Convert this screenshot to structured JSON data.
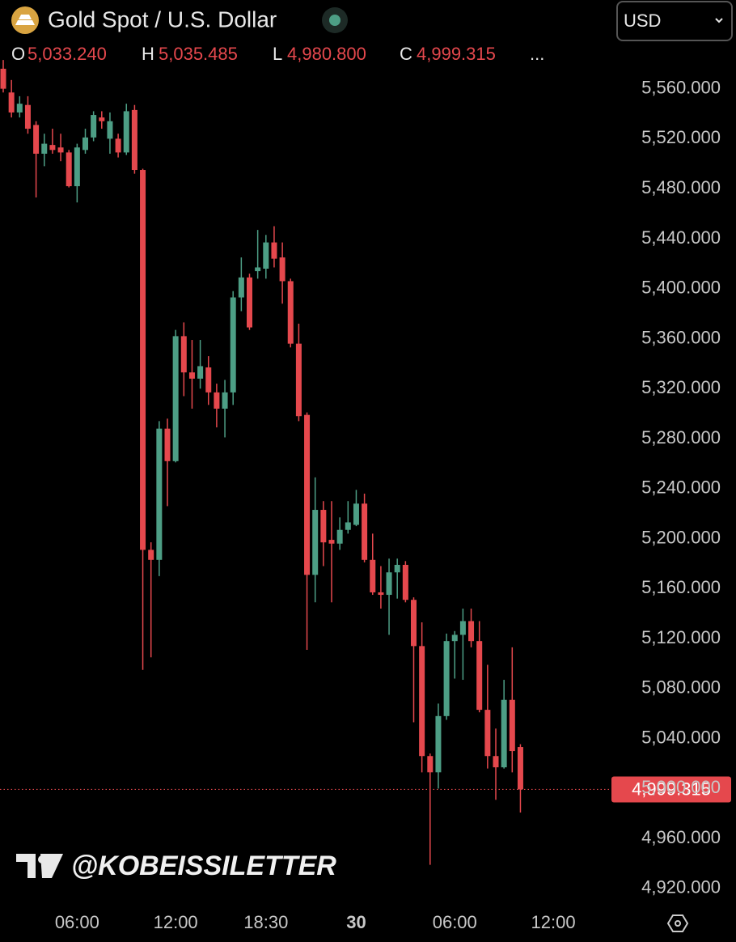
{
  "chart_data": {
    "type": "candlestick",
    "title": "Gold Spot / U.S. Dollar",
    "currency": "USD",
    "watermark": "@KOBEISSILETTER",
    "header": {
      "fields": [
        {
          "key": "O",
          "label": "5,033.240"
        },
        {
          "key": "H",
          "label": "5,035.485"
        },
        {
          "key": "L",
          "label": "4,980.800"
        },
        {
          "key": "C",
          "label": "4,999.315"
        }
      ],
      "more": "..."
    },
    "last_price_label": "4,999.315",
    "up_color": "#4d9e85",
    "down_color": "#e5484d",
    "categories": [
      null,
      null,
      null,
      null,
      null,
      null,
      null,
      null,
      null,
      "06:00",
      null,
      null,
      null,
      null,
      null,
      null,
      null,
      null,
      null,
      null,
      null,
      "12:00",
      null,
      null,
      null,
      null,
      null,
      null,
      null,
      null,
      null,
      null,
      "18:30",
      null,
      null,
      null,
      null,
      null,
      null,
      null,
      null,
      null,
      null,
      "30",
      null,
      null,
      null,
      null,
      null,
      null,
      null,
      null,
      null,
      null,
      null,
      "06:00",
      null,
      null,
      null,
      null,
      null,
      null,
      null,
      null,
      null,
      null,
      null,
      "12:00"
    ],
    "open": [
      5576,
      5557,
      5541,
      5547,
      5531,
      5508,
      5515,
      5513,
      5509,
      5482,
      5511,
      5521,
      5537,
      5520,
      5520,
      5509,
      5543,
      5495,
      5191,
      5183,
      5288,
      5262,
      5362,
      5333,
      5328,
      5337,
      5317,
      5304,
      5317,
      5393,
      5409,
      5414,
      5416,
      5437,
      5425,
      5406,
      5356,
      5299,
      5171,
      5223,
      5199,
      5196,
      5207,
      5211,
      5228,
      5183,
      5157,
      5155,
      5173,
      5179,
      5151,
      5114,
      5026,
      5013,
      5058,
      5118,
      5123,
      5134,
      5118,
      5063,
      5026,
      5017,
      5071,
      5033.24,
      null,
      null,
      null,
      null
    ],
    "high": [
      5583,
      5567,
      5554,
      5554,
      5534,
      5524,
      5528,
      5524,
      5511,
      5516,
      5528,
      5542,
      5542,
      5541,
      5524,
      5548,
      5547,
      5496,
      5197,
      5294,
      5296,
      5367,
      5373,
      5359,
      5359,
      5346,
      5324,
      5327,
      5398,
      5425,
      5412,
      5447,
      5443,
      5450,
      5437,
      5408,
      5372,
      5301,
      5249,
      5230,
      5230,
      5217,
      5230,
      5239,
      5236,
      5204,
      5178,
      5184,
      5184,
      5182,
      5153,
      5133,
      5028,
      5068,
      5124,
      5126,
      5144,
      5144,
      5134,
      5099,
      5048,
      5087,
      5113,
      5035.485,
      null,
      null,
      null,
      null
    ],
    "low": [
      5557,
      5537,
      5537,
      5524,
      5473,
      5498,
      5508,
      5502,
      5481,
      5469,
      5508,
      5518,
      5528,
      5508,
      5505,
      5507,
      5492,
      5095,
      5105,
      5170,
      5226,
      5261,
      5314,
      5304,
      5320,
      5307,
      5289,
      5281,
      5307,
      5382,
      5367,
      5408,
      5408,
      5417,
      5388,
      5353,
      5294,
      5111,
      5149,
      5178,
      5149,
      5191,
      5204,
      5210,
      5181,
      5155,
      5144,
      5123,
      5152,
      5149,
      5053,
      5013,
      4939,
      5000,
      5055,
      5088,
      5087,
      5113,
      5061,
      5016,
      4991,
      5016,
      5013,
      4980.8,
      null,
      null,
      null,
      null
    ],
    "close": [
      5560,
      5541,
      5548,
      5528,
      5508,
      5516,
      5511,
      5509,
      5482,
      5513,
      5521,
      5539,
      5534,
      5534,
      5509,
      5542,
      5495,
      5191,
      5183,
      5288,
      5262,
      5362,
      5333,
      5328,
      5338,
      5317,
      5304,
      5317,
      5393,
      5409,
      5369,
      5417,
      5437,
      5424,
      5406,
      5356,
      5298,
      5171,
      5223,
      5197,
      5196,
      5207,
      5213,
      5228,
      5183,
      5157,
      5155,
      5173,
      5179,
      5151,
      5114,
      5026,
      5013,
      5058,
      5118,
      5123,
      5134,
      5118,
      5063,
      5026,
      5017,
      5071,
      5030,
      4999.315,
      null,
      null,
      null,
      null
    ],
    "ylim": [
      4907,
      5631
    ],
    "yticks": [
      {
        "value": 4920,
        "label": "4,920.000"
      },
      {
        "value": 4960,
        "label": "4,960.000"
      },
      {
        "value": 5000,
        "label": "5,000.000"
      },
      {
        "value": 5040,
        "label": "5,040.000"
      },
      {
        "value": 5080,
        "label": "5,080.000"
      },
      {
        "value": 5120,
        "label": "5,120.000"
      },
      {
        "value": 5160,
        "label": "5,160.000"
      },
      {
        "value": 5200,
        "label": "5,200.000"
      },
      {
        "value": 5240,
        "label": "5,240.000"
      },
      {
        "value": 5280,
        "label": "5,280.000"
      },
      {
        "value": 5320,
        "label": "5,320.000"
      },
      {
        "value": 5360,
        "label": "5,360.000"
      },
      {
        "value": 5400,
        "label": "5,400.000"
      },
      {
        "value": 5440,
        "label": "5,440.000"
      },
      {
        "value": 5480,
        "label": "5,480.000"
      },
      {
        "value": 5520,
        "label": "5,520.000"
      },
      {
        "value": 5560,
        "label": "5,560.000"
      }
    ]
  }
}
